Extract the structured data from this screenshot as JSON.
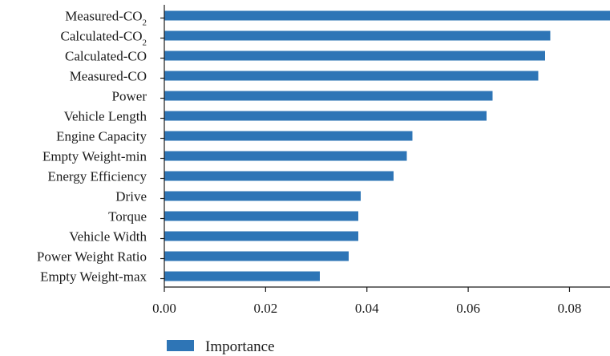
{
  "chart_data": {
    "type": "bar",
    "orientation": "horizontal",
    "title": "",
    "xlabel": "",
    "ylabel": "",
    "categories": [
      {
        "main": "Measured-CO",
        "sub": "2"
      },
      {
        "main": "Calculated-CO",
        "sub": "2"
      },
      {
        "main": "Calculated-CO",
        "sub": ""
      },
      {
        "main": "Measured-CO",
        "sub": ""
      },
      {
        "main": "Power",
        "sub": ""
      },
      {
        "main": "Vehicle Length",
        "sub": ""
      },
      {
        "main": "Engine Capacity",
        "sub": ""
      },
      {
        "main": "Empty Weight-min",
        "sub": ""
      },
      {
        "main": "Energy Efficiency",
        "sub": ""
      },
      {
        "main": "Drive",
        "sub": ""
      },
      {
        "main": "Torque",
        "sub": ""
      },
      {
        "main": "Vehicle Width",
        "sub": ""
      },
      {
        "main": "Power Weight Ratio",
        "sub": ""
      },
      {
        "main": "Empty Weight-max",
        "sub": ""
      }
    ],
    "series": [
      {
        "name": "Importance",
        "color": "#2e75b6",
        "values": [
          0.088,
          0.0762,
          0.0752,
          0.0738,
          0.0648,
          0.0636,
          0.049,
          0.0479,
          0.0453,
          0.0388,
          0.0383,
          0.0383,
          0.0364,
          0.0307
        ]
      }
    ],
    "xlim": [
      0,
      0.088
    ],
    "xticks": [
      "0.00",
      "0.02",
      "0.04",
      "0.06",
      "0.08"
    ],
    "xtick_values": [
      0,
      0.02,
      0.04,
      0.06,
      0.08
    ],
    "grid": false,
    "legend_position": "bottom-left"
  }
}
